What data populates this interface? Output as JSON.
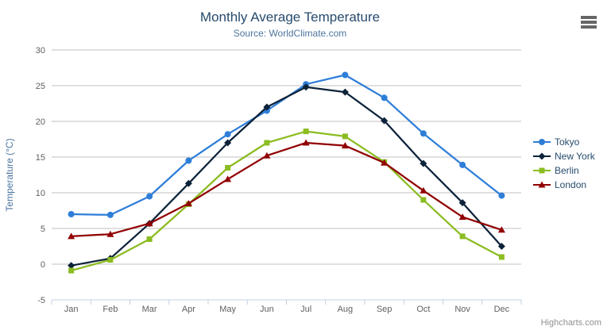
{
  "header": {
    "title": "Monthly Average Temperature",
    "subtitle": "Source: WorldClimate.com"
  },
  "menu": {
    "icon": "hamburger-icon",
    "color": "#666666"
  },
  "credits": {
    "label": "Highcharts.com",
    "color": "#909090"
  },
  "chart_data": {
    "type": "line",
    "title": "Monthly Average Temperature",
    "subtitle": "Source: WorldClimate.com",
    "categories": [
      "Jan",
      "Feb",
      "Mar",
      "Apr",
      "May",
      "Jun",
      "Jul",
      "Aug",
      "Sep",
      "Oct",
      "Nov",
      "Dec"
    ],
    "xlabel": "",
    "ylabel": "Temperature (°C)",
    "ylim": [
      -5,
      30
    ],
    "ytick_interval": 5,
    "yticks": [
      -5,
      0,
      5,
      10,
      15,
      20,
      25,
      30
    ],
    "grid": "horizontal",
    "legend_position": "right",
    "series": [
      {
        "name": "Tokyo",
        "color": "#2f7ed8",
        "marker": "circle",
        "values": [
          7.0,
          6.9,
          9.5,
          14.5,
          18.2,
          21.5,
          25.2,
          26.5,
          23.3,
          18.3,
          13.9,
          9.6
        ]
      },
      {
        "name": "New York",
        "color": "#0d233a",
        "marker": "diamond",
        "values": [
          -0.2,
          0.8,
          5.7,
          11.3,
          17.0,
          22.0,
          24.8,
          24.1,
          20.1,
          14.1,
          8.6,
          2.5
        ]
      },
      {
        "name": "Berlin",
        "color": "#8bbc21",
        "marker": "square",
        "values": [
          -0.9,
          0.6,
          3.5,
          8.4,
          13.5,
          17.0,
          18.6,
          17.9,
          14.3,
          9.0,
          3.9,
          1.0
        ]
      },
      {
        "name": "London",
        "color": "#910000",
        "marker": "triangle",
        "values": [
          3.9,
          4.2,
          5.7,
          8.5,
          11.9,
          15.2,
          17.0,
          16.6,
          14.2,
          10.3,
          6.6,
          4.8
        ]
      }
    ]
  },
  "colors": {
    "title": "#274b6d",
    "subtitle": "#4d759e",
    "axis_label": "#606060",
    "axis_title": "#4d759e",
    "grid_line": "#c0c0c0",
    "axis_line": "#c0d0e0",
    "legend_text": "#274b6d",
    "background": "#ffffff"
  }
}
